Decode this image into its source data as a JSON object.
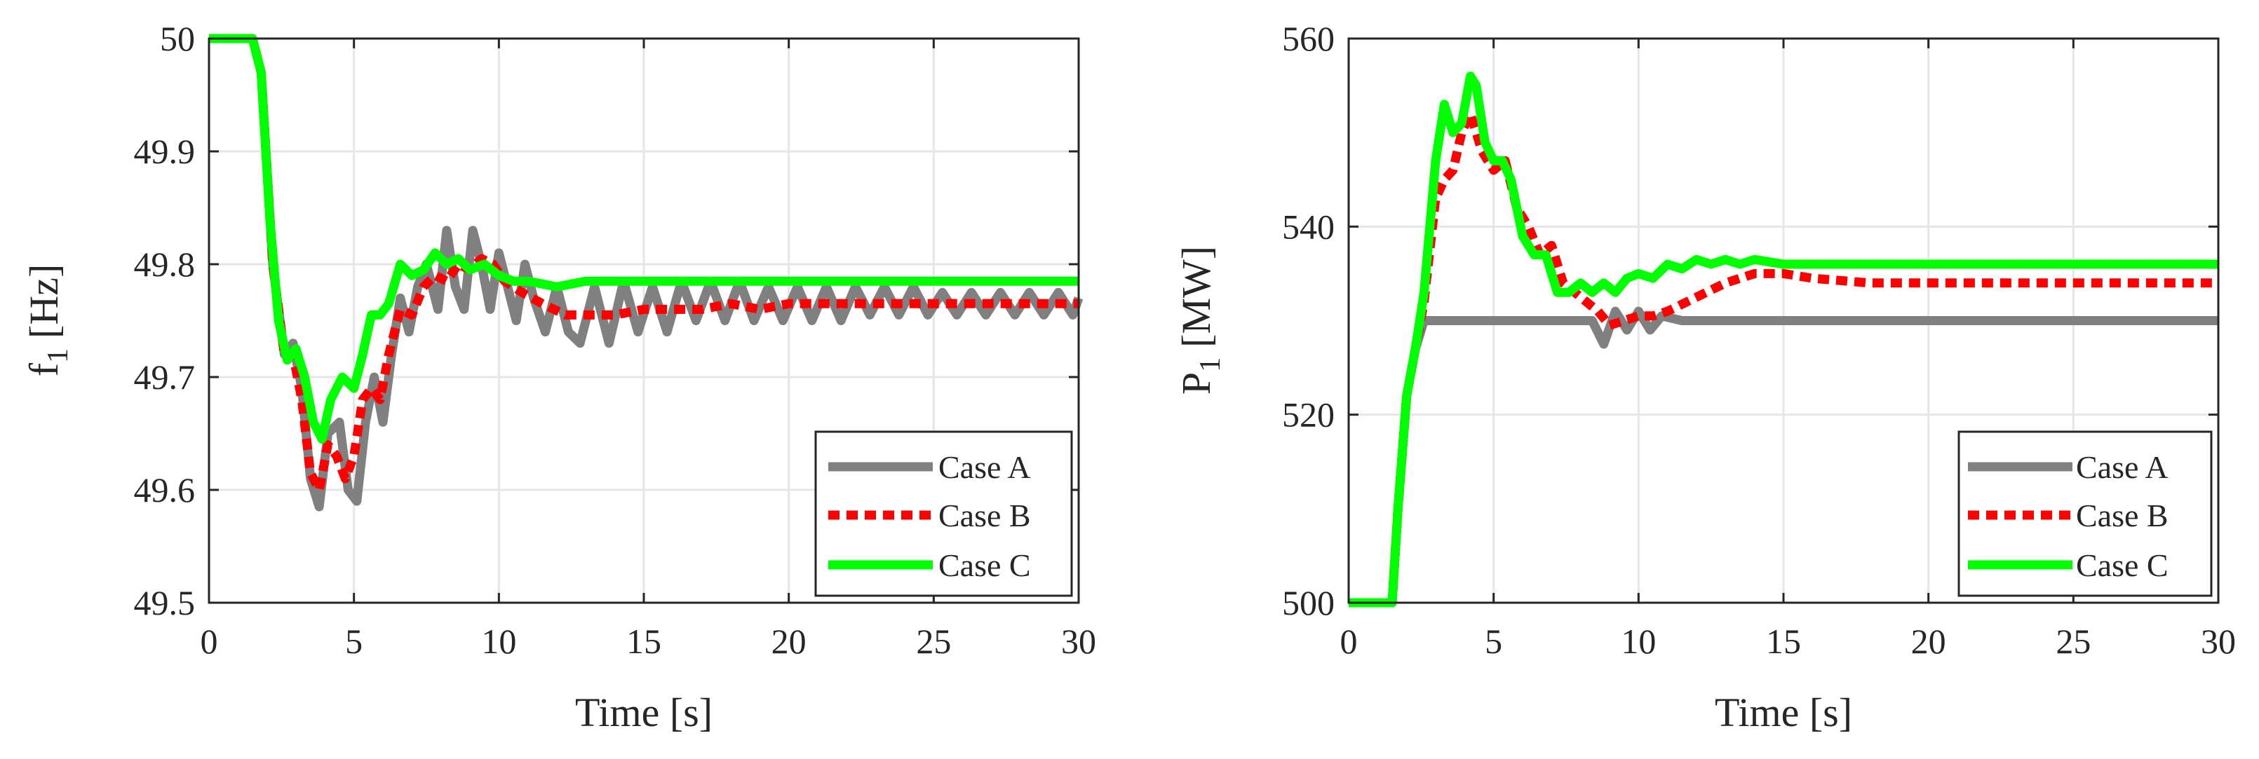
{
  "colors": {
    "case_a": "#808080",
    "case_b": "#ff0000",
    "case_c": "#00ff00",
    "grid": "#e6e6e6",
    "axes": "#262626"
  },
  "chart_data": [
    {
      "type": "line",
      "title": "",
      "xlabel": "Time [s]",
      "ylabel_main": "f",
      "ylabel_sub": "1",
      "ylabel_unit": "[Hz]",
      "xlim": [
        0,
        30
      ],
      "ylim": [
        49.5,
        50
      ],
      "xticks": [
        0,
        5,
        10,
        15,
        20,
        25,
        30
      ],
      "xtick_labels": [
        "0",
        "5",
        "10",
        "15",
        "20",
        "25",
        "30"
      ],
      "yticks": [
        49.5,
        49.6,
        49.7,
        49.8,
        49.9,
        50
      ],
      "ytick_labels": [
        "49.5",
        "49.6",
        "49.7",
        "49.8",
        "49.9",
        "50"
      ],
      "grid": true,
      "legend_position": "bottom-right",
      "legend": [
        "Case A",
        "Case B",
        "Case C"
      ],
      "series": [
        {
          "name": "Case A",
          "x": [
            0,
            1.5,
            1.8,
            2.2,
            2.6,
            2.9,
            3.2,
            3.5,
            3.8,
            4.1,
            4.5,
            4.8,
            5.1,
            5.4,
            5.7,
            6.0,
            6.3,
            6.6,
            6.9,
            7.2,
            7.5,
            7.9,
            8.2,
            8.5,
            8.8,
            9.1,
            9.4,
            9.7,
            10.0,
            10.3,
            10.6,
            10.9,
            11.2,
            11.6,
            12.0,
            12.4,
            12.8,
            13.3,
            13.8,
            14.3,
            14.8,
            15.3,
            15.8,
            16.3,
            16.8,
            17.3,
            17.8,
            18.3,
            18.8,
            19.3,
            19.8,
            20.3,
            20.8,
            21.3,
            21.8,
            22.3,
            22.8,
            23.3,
            23.8,
            24.3,
            24.8,
            25.3,
            25.8,
            26.3,
            26.8,
            27.3,
            27.8,
            28.3,
            28.8,
            29.3,
            29.8,
            30
          ],
          "y": [
            50,
            50,
            49.97,
            49.8,
            49.72,
            49.73,
            49.69,
            49.61,
            49.585,
            49.65,
            49.66,
            49.6,
            49.59,
            49.66,
            49.7,
            49.66,
            49.72,
            49.77,
            49.74,
            49.78,
            49.8,
            49.76,
            49.83,
            49.78,
            49.76,
            49.83,
            49.8,
            49.76,
            49.81,
            49.78,
            49.75,
            49.8,
            49.77,
            49.74,
            49.78,
            49.74,
            49.73,
            49.78,
            49.73,
            49.785,
            49.74,
            49.78,
            49.74,
            49.785,
            49.75,
            49.785,
            49.75,
            49.785,
            49.75,
            49.78,
            49.75,
            49.78,
            49.75,
            49.78,
            49.75,
            49.78,
            49.755,
            49.78,
            49.755,
            49.78,
            49.755,
            49.775,
            49.755,
            49.775,
            49.755,
            49.775,
            49.755,
            49.775,
            49.755,
            49.775,
            49.755,
            49.77
          ]
        },
        {
          "name": "Case B",
          "x": [
            0,
            1.5,
            1.8,
            2.2,
            2.6,
            2.9,
            3.2,
            3.5,
            3.8,
            4.1,
            4.4,
            4.7,
            5.0,
            5.3,
            5.6,
            5.9,
            6.2,
            6.6,
            7.0,
            7.4,
            7.8,
            8.2,
            8.6,
            9.0,
            9.4,
            9.8,
            10.2,
            10.8,
            11.5,
            12.3,
            13.0,
            14.0,
            15.0,
            16.0,
            17.0,
            18.0,
            19.0,
            20.0,
            21.0,
            22.0,
            23.0,
            24.0,
            25.0,
            26.0,
            27.0,
            28.0,
            29.0,
            30
          ],
          "y": [
            50,
            50,
            49.97,
            49.8,
            49.72,
            49.72,
            49.68,
            49.615,
            49.6,
            49.64,
            49.63,
            49.61,
            49.63,
            49.68,
            49.69,
            49.68,
            49.72,
            49.76,
            49.755,
            49.78,
            49.79,
            49.785,
            49.8,
            49.795,
            49.805,
            49.8,
            49.785,
            49.775,
            49.765,
            49.755,
            49.755,
            49.755,
            49.76,
            49.76,
            49.76,
            49.765,
            49.76,
            49.765,
            49.765,
            49.765,
            49.765,
            49.765,
            49.765,
            49.765,
            49.765,
            49.765,
            49.765,
            49.765
          ]
        },
        {
          "name": "Case C",
          "x": [
            0,
            1.5,
            1.8,
            2.1,
            2.4,
            2.7,
            3.0,
            3.3,
            3.6,
            3.9,
            4.2,
            4.6,
            5.0,
            5.3,
            5.6,
            5.9,
            6.2,
            6.6,
            7.0,
            7.4,
            7.8,
            8.2,
            8.6,
            9.0,
            9.5,
            10.0,
            10.5,
            11.0,
            12.0,
            13.0,
            14.0,
            15.0,
            16.0,
            17.0,
            18.0,
            20.0,
            22.0,
            24.0,
            26.0,
            28.0,
            30
          ],
          "y": [
            50,
            50,
            49.97,
            49.84,
            49.75,
            49.715,
            49.725,
            49.7,
            49.66,
            49.645,
            49.68,
            49.7,
            49.69,
            49.72,
            49.755,
            49.755,
            49.765,
            49.8,
            49.79,
            49.795,
            49.81,
            49.8,
            49.805,
            49.795,
            49.8,
            49.79,
            49.785,
            49.785,
            49.78,
            49.785,
            49.785,
            49.785,
            49.785,
            49.785,
            49.785,
            49.785,
            49.785,
            49.785,
            49.785,
            49.785,
            49.785
          ]
        }
      ]
    },
    {
      "type": "line",
      "title": "",
      "xlabel": "Time [s]",
      "ylabel_main": "P",
      "ylabel_sub": "1",
      "ylabel_unit": "[MW]",
      "xlim": [
        0,
        30
      ],
      "ylim": [
        500,
        560
      ],
      "xticks": [
        0,
        5,
        10,
        15,
        20,
        25,
        30
      ],
      "xtick_labels": [
        "0",
        "5",
        "10",
        "15",
        "20",
        "25",
        "30"
      ],
      "yticks": [
        500,
        520,
        540,
        560
      ],
      "ytick_labels": [
        "500",
        "520",
        "540",
        "560"
      ],
      "grid": true,
      "legend_position": "bottom-right",
      "legend": [
        "Case A",
        "Case B",
        "Case C"
      ],
      "series": [
        {
          "name": "Case A",
          "x": [
            0,
            1.5,
            1.7,
            2.0,
            2.3,
            2.6,
            3.0,
            4.0,
            5.0,
            6.0,
            7.0,
            7.5,
            8.0,
            8.4,
            8.8,
            9.2,
            9.6,
            10.0,
            10.4,
            10.8,
            11.5,
            12.5,
            14.0,
            16.0,
            18.0,
            20.0,
            22.0,
            24.0,
            26.0,
            28.0,
            30
          ],
          "y": [
            500,
            500,
            510,
            522,
            527,
            530,
            530,
            530,
            530,
            530,
            530,
            530,
            530,
            530,
            527.5,
            531,
            529,
            531,
            529,
            530.5,
            530,
            530,
            530,
            530,
            530,
            530,
            530,
            530,
            530,
            530,
            530
          ]
        },
        {
          "name": "Case B",
          "x": [
            0,
            1.5,
            1.7,
            2.0,
            2.3,
            2.6,
            3.0,
            3.3,
            3.6,
            3.9,
            4.2,
            4.6,
            5.0,
            5.4,
            5.8,
            6.2,
            6.6,
            7.0,
            7.4,
            7.8,
            8.2,
            8.6,
            9.0,
            9.5,
            10.0,
            10.5,
            11.0,
            12.0,
            13.0,
            14.0,
            15.0,
            16.0,
            18.0,
            20.0,
            22.0,
            24.0,
            26.0,
            28.0,
            30
          ],
          "y": [
            500,
            500,
            510,
            522,
            527,
            532,
            543,
            545,
            546,
            550,
            552,
            548,
            546,
            547,
            542,
            540,
            537,
            538,
            534,
            533,
            532,
            531,
            529.5,
            530,
            530.5,
            530.5,
            531,
            532.5,
            534,
            535,
            535,
            534.5,
            534,
            534,
            534,
            534,
            534,
            534,
            534
          ]
        },
        {
          "name": "Case C",
          "x": [
            0,
            1.5,
            1.7,
            2.0,
            2.3,
            2.6,
            3.0,
            3.3,
            3.6,
            3.9,
            4.2,
            4.4,
            4.7,
            5.0,
            5.3,
            5.6,
            6.0,
            6.4,
            6.8,
            7.2,
            7.6,
            8.0,
            8.4,
            8.8,
            9.2,
            9.6,
            10.0,
            10.5,
            11.0,
            11.5,
            12.0,
            12.5,
            13.0,
            13.5,
            14.0,
            15.0,
            16.0,
            18.0,
            20.0,
            22.0,
            24.0,
            26.0,
            28.0,
            30
          ],
          "y": [
            500,
            500,
            510,
            522,
            527,
            533,
            547,
            553,
            550,
            551,
            556,
            555,
            549,
            547,
            547,
            545,
            539,
            537,
            537,
            533,
            533,
            534,
            533,
            534,
            533,
            534.5,
            535,
            534.5,
            536,
            535.5,
            536.5,
            536,
            536.5,
            536,
            536.5,
            536,
            536,
            536,
            536,
            536,
            536,
            536,
            536,
            536
          ]
        }
      ]
    }
  ]
}
